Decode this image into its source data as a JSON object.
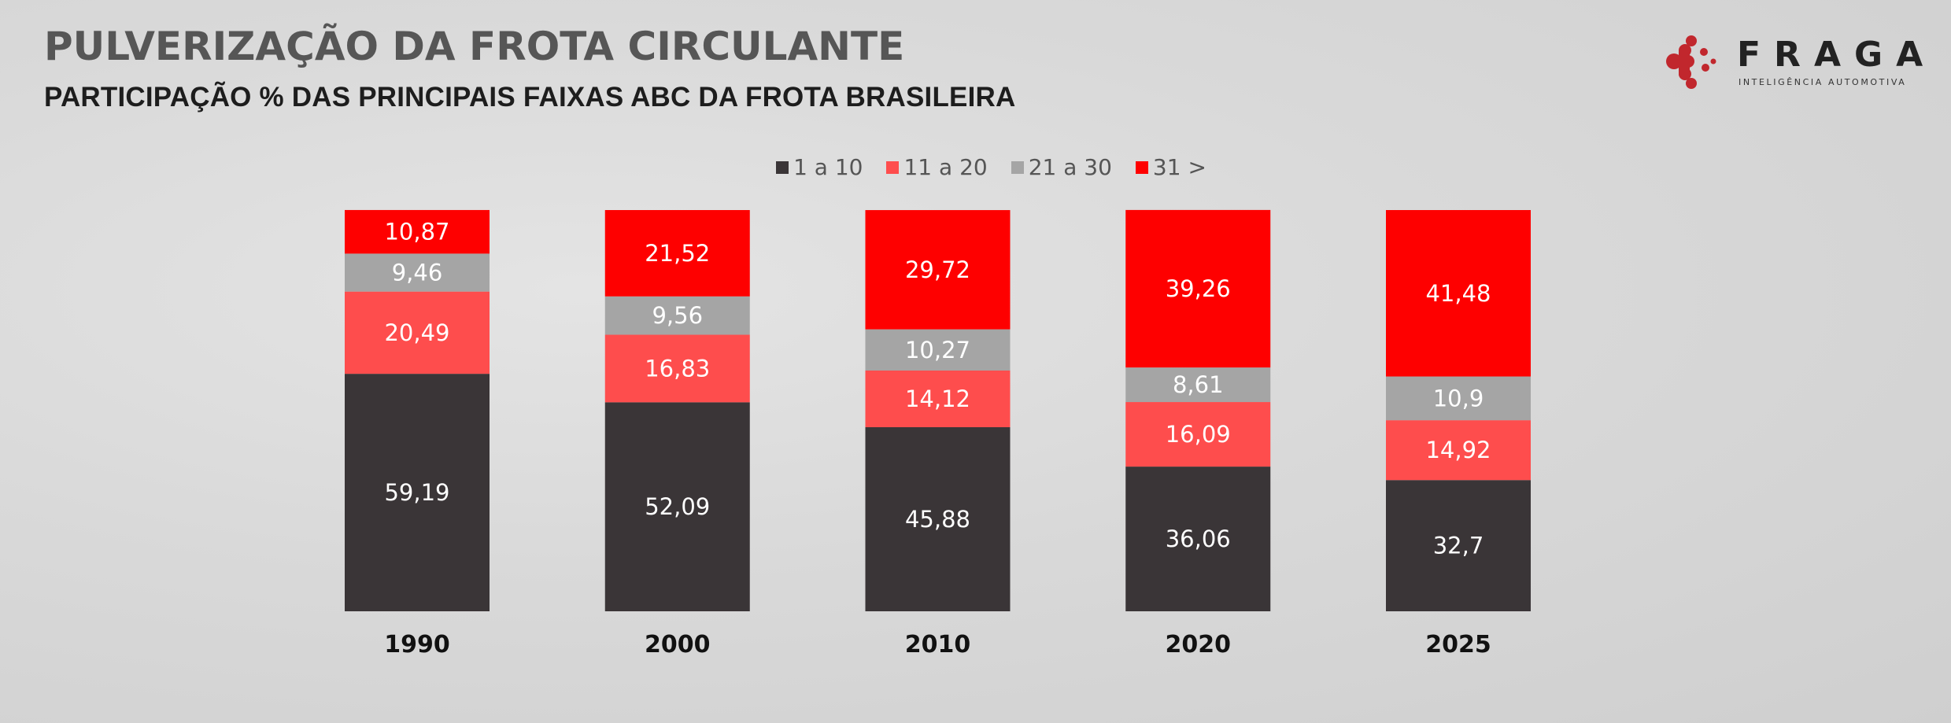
{
  "header": {
    "title": "PULVERIZAÇÃO DA FROTA CIRCULANTE",
    "subtitle": "PARTICIPAÇÃO % DAS PRINCIPAIS FAIXAS ABC DA FROTA BRASILEIRA"
  },
  "logo": {
    "word": "FRAGA",
    "tagline": "INTELIGÊNCIA AUTOMOTIVA",
    "icon": "red-dots-molecule-icon"
  },
  "chart_data": {
    "type": "bar",
    "stacked": true,
    "title": "PULVERIZAÇÃO DA FROTA CIRCULANTE",
    "subtitle": "PARTICIPAÇÃO % DAS PRINCIPAIS FAIXAS ABC DA FROTA BRASILEIRA",
    "xlabel": "",
    "ylabel": "",
    "ylim": [
      0,
      100
    ],
    "grid": false,
    "legend_position": "top-center",
    "categories": [
      "1990",
      "2000",
      "2010",
      "2020",
      "2025"
    ],
    "series": [
      {
        "name": "1 a 10",
        "color": "#3a3537",
        "values": [
          59.19,
          52.09,
          45.88,
          36.06,
          32.7
        ],
        "labels": [
          "59,19",
          "52,09",
          "45,88",
          "36,06",
          "32,7"
        ]
      },
      {
        "name": "11 a 20",
        "color": "#fe4d4d",
        "values": [
          20.49,
          16.83,
          14.12,
          16.09,
          14.92
        ],
        "labels": [
          "20,49",
          "16,83",
          "14,12",
          "16,09",
          "14,92"
        ]
      },
      {
        "name": "21 a 30",
        "color": "#a5a5a5",
        "values": [
          9.46,
          9.56,
          10.27,
          8.61,
          10.9
        ],
        "labels": [
          "9,46",
          "9,56",
          "10,27",
          "8,61",
          "10,9"
        ]
      },
      {
        "name": "31 >",
        "color": "#fe0000",
        "values": [
          10.87,
          21.52,
          29.72,
          39.26,
          41.48
        ],
        "labels": [
          "10,87",
          "21,52",
          "29,72",
          "39,26",
          "41,48"
        ]
      }
    ]
  }
}
